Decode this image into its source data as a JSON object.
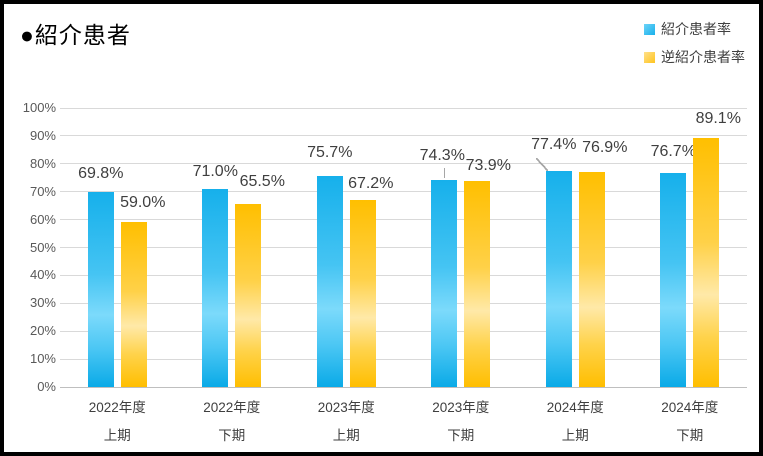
{
  "title": "●紹介患者",
  "legend": {
    "items": [
      {
        "label": "紹介患者率",
        "color": "#1fb4ed"
      },
      {
        "label": "逆紹介患者率",
        "color": "#ffc63a"
      }
    ]
  },
  "chart_data": {
    "type": "bar",
    "title": "紹介患者",
    "categories": [
      {
        "line1": "2022年度",
        "line2": "上期"
      },
      {
        "line1": "2022年度",
        "line2": "下期"
      },
      {
        "line1": "2023年度",
        "line2": "上期"
      },
      {
        "line1": "2023年度",
        "line2": "下期"
      },
      {
        "line1": "2024年度",
        "line2": "上期"
      },
      {
        "line1": "2024年度",
        "line2": "下期"
      }
    ],
    "series": [
      {
        "name": "紹介患者率",
        "color": "#1fb2ec",
        "values": [
          69.8,
          71.0,
          75.7,
          74.3,
          77.4,
          76.7
        ],
        "labels": [
          "69.8%",
          "71.0%",
          "75.7%",
          "74.3%",
          "77.4%",
          "76.7%"
        ]
      },
      {
        "name": "逆紹介患者率",
        "color": "#ffc000",
        "values": [
          59.0,
          65.5,
          67.2,
          73.9,
          76.9,
          89.1
        ],
        "labels": [
          "59.0%",
          "65.5%",
          "67.2%",
          "73.9%",
          "76.9%",
          "89.1%"
        ]
      }
    ],
    "y_ticks": [
      "0%",
      "10%",
      "20%",
      "30%",
      "40%",
      "50%",
      "60%",
      "70%",
      "80%",
      "90%",
      "100%"
    ],
    "ylim": [
      0,
      100
    ],
    "grid": true,
    "legend_position": "top-right",
    "label_layout": {
      "series0": [
        {
          "dx": 0,
          "gap": 9
        },
        {
          "dx": 0,
          "gap": 8
        },
        {
          "dx": 0,
          "gap": 14
        },
        {
          "dx": -2,
          "gap": 15,
          "leader": "v"
        },
        {
          "dx": -5,
          "gap": 17,
          "leader": "d"
        },
        {
          "dx": 0,
          "gap": 12
        }
      ],
      "series1": [
        {
          "dx": 9,
          "gap": 10
        },
        {
          "dx": 14,
          "gap": 13
        },
        {
          "dx": 8,
          "gap": 7
        },
        {
          "dx": 11,
          "gap": 6
        },
        {
          "dx": 13,
          "gap": 15
        },
        {
          "dx": 12,
          "gap": 10
        }
      ]
    }
  },
  "colors": {
    "grid": "#d9d9d9",
    "axis": "#bfbfbf",
    "tick_text": "#595959",
    "label_text": "#3f3f3f",
    "leader": "#a6a6a6",
    "border": "#000000",
    "background": "#ffffff"
  }
}
